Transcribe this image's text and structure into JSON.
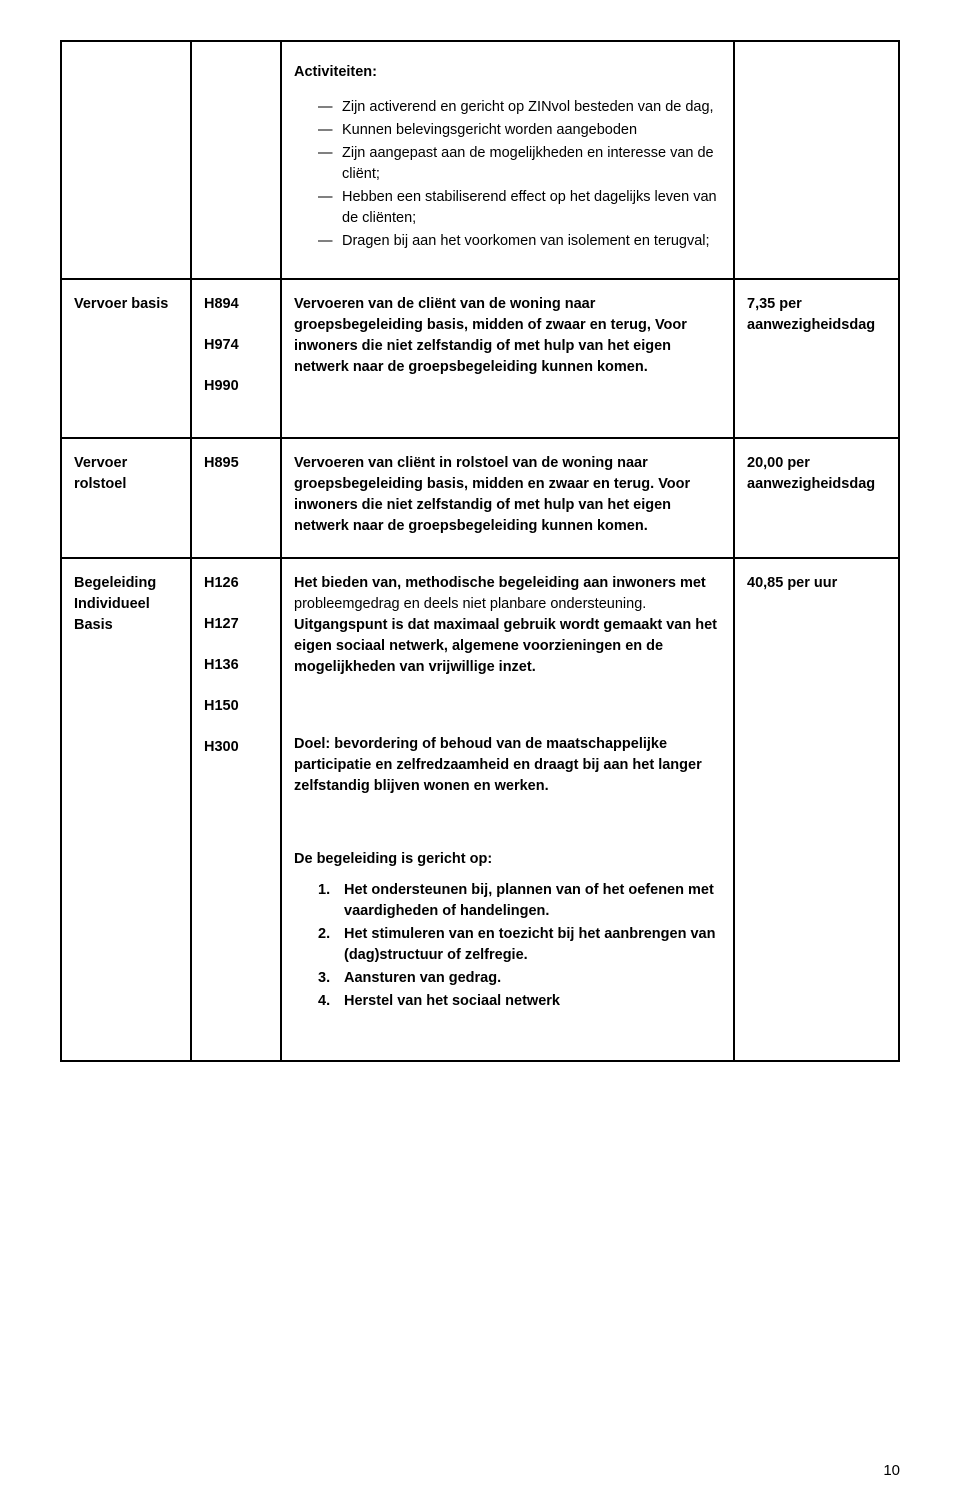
{
  "page_number": "10",
  "rows": {
    "activiteiten": {
      "heading": "Activiteiten:",
      "bullets": [
        "Zijn activerend en gericht op ZINvol besteden van de dag,",
        "Kunnen belevingsgericht worden aangeboden",
        "Zijn aangepast aan de mogelijkheden en interesse van de cliënt;",
        "Hebben een stabiliserend effect op het dagelijks leven van de cliënten;",
        "Dragen bij aan het voorkomen van isolement en terugval;"
      ]
    },
    "vervoer_basis": {
      "label": "Vervoer basis",
      "codes": [
        "H894",
        "H974",
        "H990"
      ],
      "desc": "Vervoeren van de cliënt van de woning naar groepsbegeleiding basis, midden of zwaar en terug, Voor inwoners die niet zelfstandig of met hulp van het eigen netwerk naar de groepsbegeleiding kunnen komen.",
      "price": "7,35 per aanwezigheidsdag"
    },
    "vervoer_rolstoel": {
      "label": "Vervoer rolstoel",
      "codes": [
        "H895"
      ],
      "desc": "Vervoeren van cliënt in rolstoel van de woning naar groepsbegeleiding basis, midden en zwaar en terug. Voor inwoners die niet zelfstandig of met hulp van het eigen netwerk naar de groepsbegeleiding kunnen komen.",
      "price": "20,00 per aanwezigheidsdag"
    },
    "begeleiding": {
      "label": "Begeleiding Individueel Basis",
      "codes": [
        "H126",
        "H127",
        "H136",
        "H150",
        "H300"
      ],
      "para1_bold": "Het bieden van, methodische begeleiding aan inwoners met ",
      "para1_plain": "probleemgedrag en deels niet planbare ondersteuning. ",
      "para1_bold2": "Uitgangspunt is dat maximaal gebruik wordt gemaakt van het eigen sociaal netwerk, algemene voorzieningen en de mogelijkheden van vrijwillige inzet.",
      "para2": "Doel: bevordering of behoud van de maatschappelijke participatie en zelfredzaamheid en draagt bij aan het langer zelfstandig blijven wonen en werken.",
      "list_heading": "De begeleiding is gericht op:",
      "list": [
        "Het ondersteunen bij, plannen van of het oefenen met vaardigheden of handelingen.",
        "Het stimuleren van en toezicht bij het aanbrengen van (dag)structuur of zelfregie.",
        "Aansturen van gedrag.",
        "Herstel van het sociaal netwerk"
      ],
      "price": "40,85 per uur"
    }
  }
}
